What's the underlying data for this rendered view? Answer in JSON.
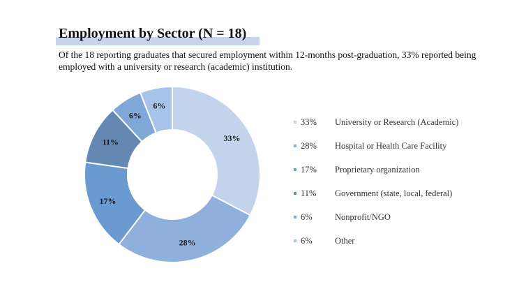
{
  "header": {
    "title": "Employment by Sector (N = 18)",
    "subtitle": "Of the 18 reporting graduates that secured employment within 12-months post-graduation, 33% reported being employed with a university or research (academic) institution."
  },
  "chart_data": {
    "type": "pie",
    "donut": true,
    "categories": [
      "University or Research  (Academic)",
      "Hospital or Health Care Facility",
      "Proprietary organization",
      "Government (state, local, federal)",
      "Nonprofit/NGO",
      "Other"
    ],
    "values": [
      33,
      28,
      17,
      11,
      6,
      6
    ],
    "labels": [
      "33%",
      "28%",
      "17%",
      "11%",
      "6%",
      "6%"
    ],
    "colors": [
      "#c3d3ec",
      "#8fb0dc",
      "#6b9ad0",
      "#6487b4",
      "#7fa8d9",
      "#a8c3e9"
    ],
    "legend_position": "right"
  }
}
